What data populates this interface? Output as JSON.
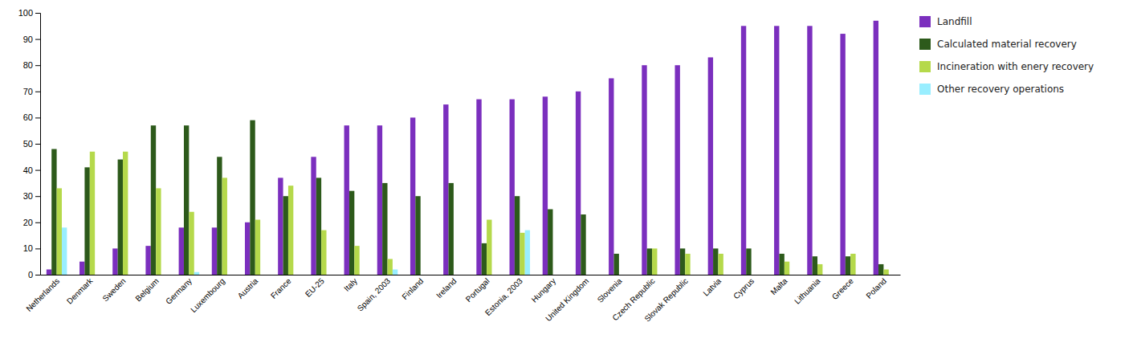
{
  "chart_data": {
    "type": "bar",
    "categories": [
      "Netherlands",
      "Denmark",
      "Sweden",
      "Belgium",
      "Germany",
      "Luxembourg",
      "Austria",
      "France",
      "EU-25",
      "Italy",
      "Spain, 2003",
      "Finland",
      "Ireland",
      "Portugal",
      "Estonia, 2003",
      "Hungary",
      "United Kingdom",
      "Slovenia",
      "Czech Republic",
      "Slovak Republic",
      "Latvia",
      "Cyprus",
      "Malta",
      "Lithuania",
      "Greece",
      "Poland"
    ],
    "series": [
      {
        "name": "Landfill",
        "color": "#7b2fbe",
        "values": [
          2,
          5,
          10,
          11,
          18,
          18,
          20,
          37,
          45,
          57,
          57,
          60,
          65,
          67,
          67,
          68,
          70,
          75,
          80,
          80,
          83,
          95,
          95,
          95,
          92,
          97
        ]
      },
      {
        "name": "Calculated material recovery",
        "color": "#2d5a1b",
        "values": [
          48,
          41,
          44,
          57,
          57,
          45,
          59,
          30,
          37,
          32,
          35,
          30,
          35,
          12,
          30,
          25,
          23,
          8,
          10,
          10,
          10,
          10,
          8,
          7,
          7,
          4
        ]
      },
      {
        "name": "Incineration with enery recovery",
        "color": "#b5d94b",
        "values": [
          33,
          47,
          47,
          33,
          24,
          37,
          21,
          34,
          17,
          11,
          6,
          0,
          0,
          21,
          16,
          0,
          0,
          0,
          10,
          8,
          8,
          0,
          5,
          4,
          8,
          2
        ]
      },
      {
        "name": "Other recovery operations",
        "color": "#99eeff",
        "values": [
          18,
          0,
          0,
          0,
          1,
          0,
          0,
          0,
          0,
          0,
          2,
          0,
          0,
          0,
          17,
          0,
          0,
          0,
          0,
          0,
          0,
          0,
          0,
          0,
          0,
          0
        ]
      }
    ],
    "ylim": [
      0,
      100
    ],
    "yticks": [
      0,
      10,
      20,
      30,
      40,
      50,
      60,
      70,
      80,
      90,
      100
    ],
    "grid": false,
    "legend": "right"
  }
}
